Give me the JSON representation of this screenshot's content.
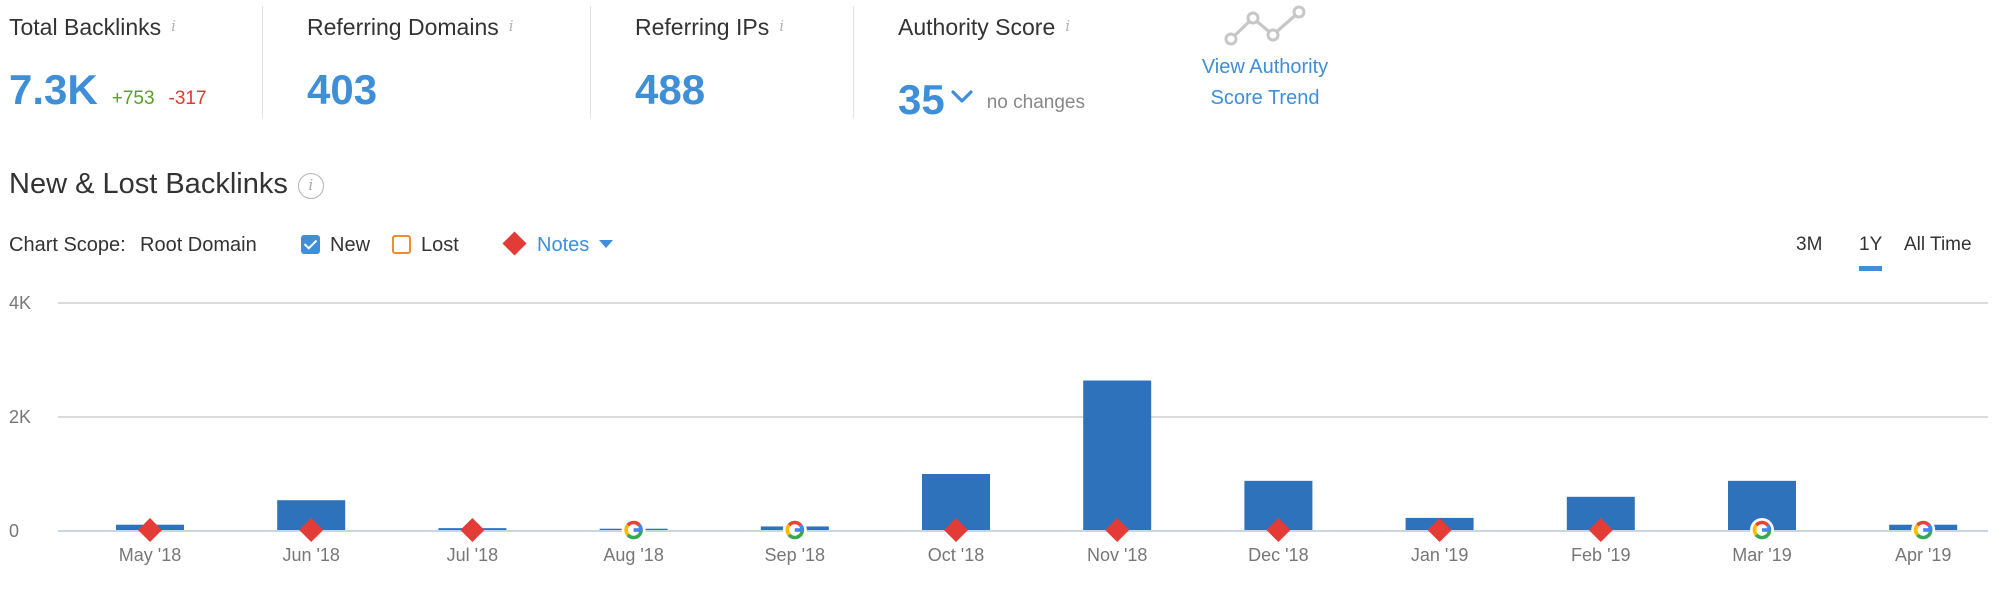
{
  "metrics": {
    "total_backlinks": {
      "label": "Total Backlinks",
      "value": "7.3K",
      "added": "+753",
      "lost": "-317"
    },
    "referring_domains": {
      "label": "Referring Domains",
      "value": "403"
    },
    "referring_ips": {
      "label": "Referring IPs",
      "value": "488"
    },
    "authority_score": {
      "label": "Authority Score",
      "value": "35",
      "change": "no changes"
    },
    "info_glyph": "i"
  },
  "trend_link": {
    "line1": "View Authority",
    "line2": "Score Trend"
  },
  "section": {
    "title": "New & Lost Backlinks",
    "info_glyph": "i"
  },
  "controls": {
    "scope_label": "Chart Scope:",
    "scope_value": "Root Domain",
    "new_label": "New",
    "lost_label": "Lost",
    "notes_label": "Notes",
    "new_checked": true,
    "lost_checked": false
  },
  "range_tabs": [
    {
      "label": "3M",
      "active": false
    },
    {
      "label": "1Y",
      "active": true
    },
    {
      "label": "All Time",
      "active": false
    }
  ],
  "colors": {
    "accent": "#3e8ed8",
    "bar": "#2d72bb",
    "positive": "#5aa02c",
    "negative": "#e03a32",
    "note": "#e33b36",
    "lost": "#f28a2e"
  },
  "chart_data": {
    "type": "bar",
    "categories": [
      "May '18",
      "Jun '18",
      "Jul '18",
      "Aug '18",
      "Sep '18",
      "Oct '18",
      "Nov '18",
      "Dec '18",
      "Jan '19",
      "Feb '19",
      "Mar '19",
      "Apr '19"
    ],
    "series": [
      {
        "name": "New",
        "values": [
          110,
          540,
          50,
          40,
          80,
          1000,
          2640,
          880,
          230,
          600,
          880,
          110
        ]
      }
    ],
    "markers": [
      "note",
      "note",
      "note",
      "google",
      "google",
      "note",
      "note",
      "note",
      "note",
      "note",
      "google",
      "google"
    ],
    "y_ticks": [
      {
        "value": 0,
        "label": "0"
      },
      {
        "value": 2000,
        "label": "2K"
      },
      {
        "value": 4000,
        "label": "4K"
      }
    ],
    "ylim": [
      0,
      4000
    ],
    "grid": true,
    "legend": "none"
  }
}
